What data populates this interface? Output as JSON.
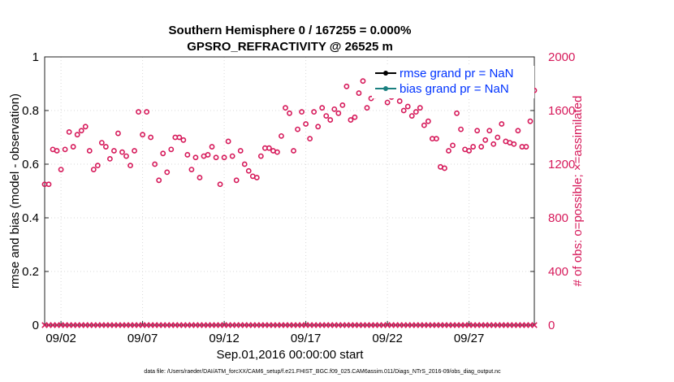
{
  "chart_data": {
    "type": "scatter",
    "title": "Southern Hemisphere 0 / 167255 = 0.000%",
    "subtitle": "GPSRO_REFRACTIVITY @ 26525 m",
    "ylabel": "rmse and bias (model - observation)",
    "y2label": "# of obs: o=possible; ×=assimilated",
    "xlabel": "Sep.01,2016 00:00:00 start",
    "footnote": "data file: /Users/raeder/DAI/ATM_forcXX/CAM6_setup/f.e21.FHIST_BGC.f09_025.CAM6assim.011/Diags_NTrS_2016-09/obs_diag_output.nc",
    "ylim": [
      0,
      1
    ],
    "y2lim": [
      0,
      2000
    ],
    "xlim": [
      0.5,
      30.5
    ],
    "yticks": [
      "0",
      "0.2",
      "0.4",
      "0.6",
      "0.8",
      "1"
    ],
    "y2ticks": [
      "0",
      "400",
      "800",
      "1200",
      "1600",
      "2000"
    ],
    "xticks": [
      {
        "x": 1.5,
        "label": "09/02"
      },
      {
        "x": 6.5,
        "label": "09/07"
      },
      {
        "x": 11.5,
        "label": "09/12"
      },
      {
        "x": 16.5,
        "label": "09/17"
      },
      {
        "x": 21.5,
        "label": "09/22"
      },
      {
        "x": 26.5,
        "label": "09/27"
      }
    ],
    "grid": true,
    "legend_position": "top-right",
    "colors": {
      "primary": "#d6195a",
      "rmse": "#000000",
      "bias": "#1a8080",
      "legend_text": "#0033ff"
    },
    "series": [
      {
        "name": "rmse grand pr = NaN",
        "values": []
      },
      {
        "name": "bias grand pr = NaN",
        "values": []
      },
      {
        "name": "possible",
        "x": [
          0.5,
          0.75,
          1.0,
          1.25,
          1.5,
          1.75,
          2.0,
          2.25,
          2.5,
          2.75,
          3.0,
          3.25,
          3.5,
          3.75,
          4.0,
          4.25,
          4.5,
          4.75,
          5.0,
          5.25,
          5.5,
          5.75,
          6.0,
          6.25,
          6.5,
          6.75,
          7.0,
          7.25,
          7.5,
          7.75,
          8.0,
          8.25,
          8.5,
          8.75,
          9.0,
          9.25,
          9.5,
          9.75,
          10.0,
          10.25,
          10.5,
          10.75,
          11.0,
          11.25,
          11.5,
          11.75,
          12.0,
          12.25,
          12.5,
          12.75,
          13.0,
          13.25,
          13.5,
          13.75,
          14.0,
          14.25,
          14.5,
          14.75,
          15.0,
          15.25,
          15.5,
          15.75,
          16.0,
          16.25,
          16.5,
          16.75,
          17.0,
          17.25,
          17.5,
          17.75,
          18.0,
          18.25,
          18.5,
          18.75,
          19.0,
          19.25,
          19.5,
          19.75,
          20.0,
          20.25,
          20.5,
          20.75,
          21.0,
          21.25,
          21.5,
          21.75,
          22.0,
          22.25,
          22.5,
          22.75,
          23.0,
          23.25,
          23.5,
          23.75,
          24.0,
          24.25,
          24.5,
          24.75,
          25.0,
          25.25,
          25.5,
          25.75,
          26.0,
          26.25,
          26.5,
          26.75,
          27.0,
          27.25,
          27.5,
          27.75,
          28.0,
          28.25,
          28.5,
          28.75,
          29.0,
          29.25,
          29.5,
          29.75,
          30.0,
          30.25,
          30.5
        ],
        "values": [
          1050,
          1050,
          1310,
          1300,
          1160,
          1310,
          1440,
          1330,
          1420,
          1450,
          1480,
          1300,
          1160,
          1190,
          1360,
          1330,
          1240,
          1300,
          1430,
          1290,
          1260,
          1190,
          1300,
          1590,
          1420,
          1590,
          1400,
          1200,
          1080,
          1280,
          1140,
          1310,
          1400,
          1400,
          1380,
          1270,
          1160,
          1250,
          1100,
          1260,
          1270,
          1330,
          1250,
          1050,
          1250,
          1370,
          1260,
          1080,
          1300,
          1200,
          1150,
          1110,
          1100,
          1260,
          1320,
          1320,
          1300,
          1290,
          1410,
          1620,
          1580,
          1300,
          1460,
          1590,
          1500,
          1390,
          1590,
          1480,
          1620,
          1560,
          1530,
          1610,
          1580,
          1640,
          1780,
          1530,
          1550,
          1730,
          1820,
          1620,
          1690,
          1710,
          1740,
          1830,
          1660,
          1700,
          1760,
          1670,
          1600,
          1630,
          1560,
          1590,
          1620,
          1490,
          1520,
          1390,
          1390,
          1180,
          1170,
          1300,
          1340,
          1580,
          1460,
          1310,
          1300,
          1330,
          1450,
          1330,
          1380,
          1450,
          1350,
          1400,
          1500,
          1370,
          1360,
          1350,
          1450,
          1330,
          1330,
          1520,
          1750
        ]
      },
      {
        "name": "assimilated",
        "values": [
          0
        ]
      }
    ]
  }
}
